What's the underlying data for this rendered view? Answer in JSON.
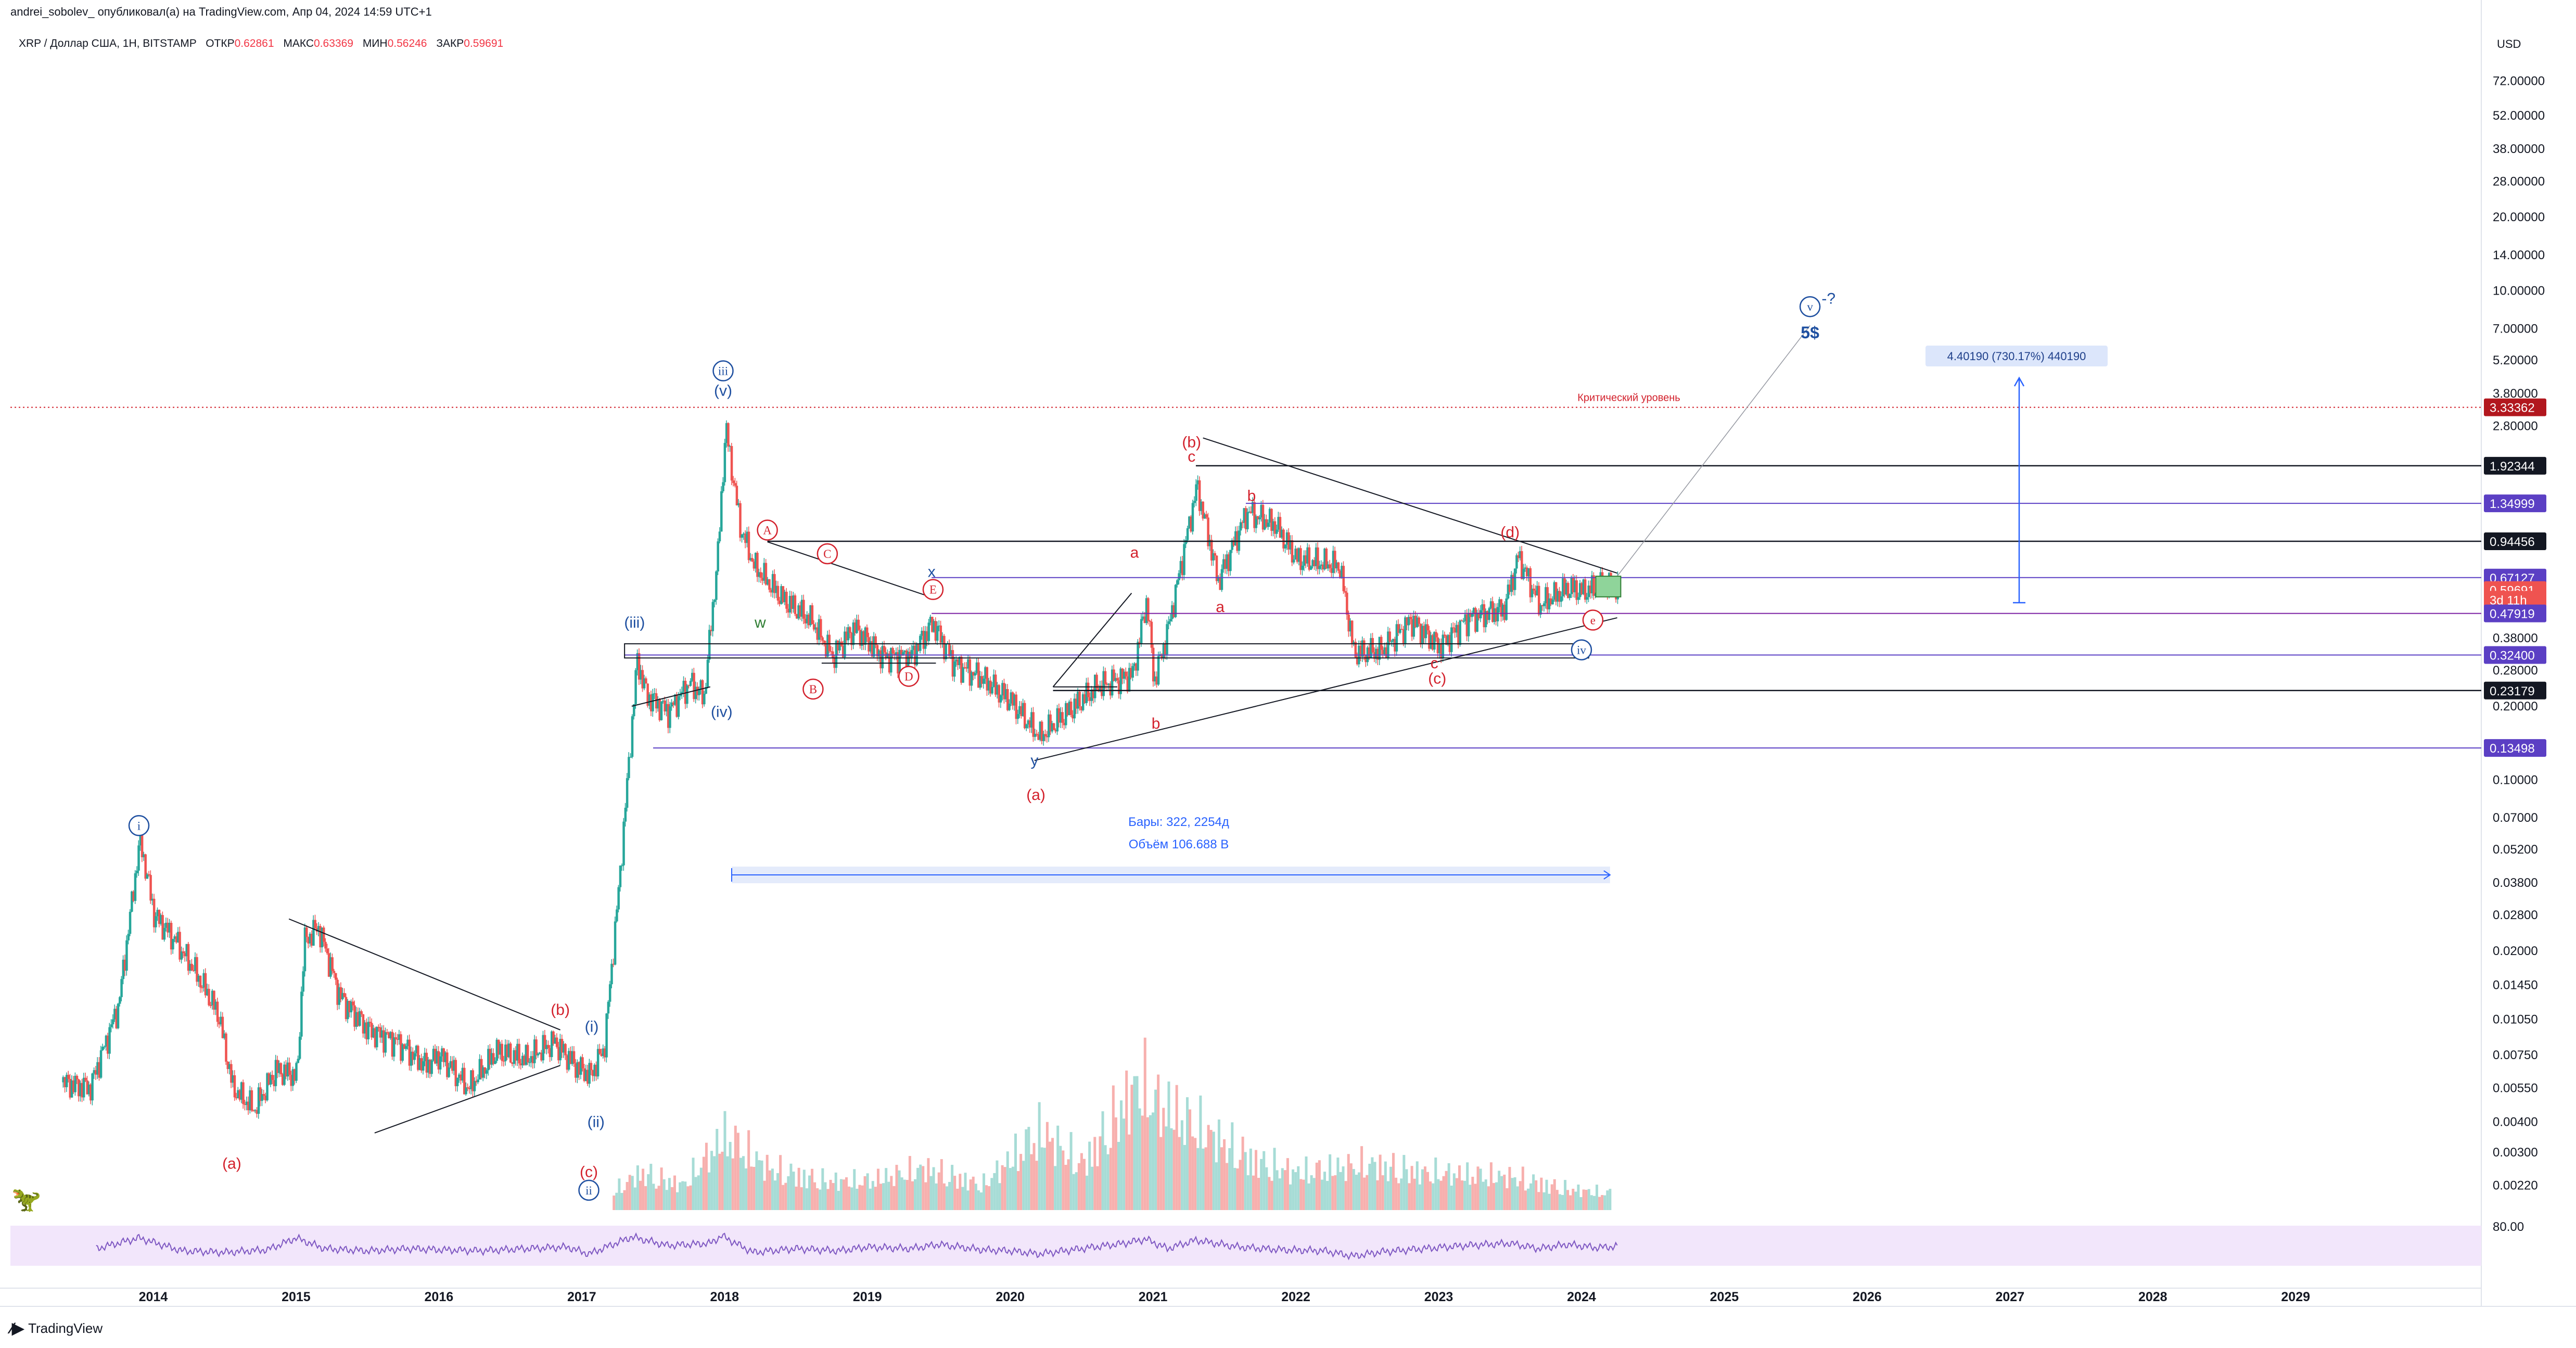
{
  "header": {
    "publisher": "andrei_sobolev_ опубликовал(а) на TradingView.com, Апр 04, 2024 14:59 UTC+1",
    "symbol": "XRP / Доллар США, 1Н, BITSTAMP",
    "open_label": "ОТКР",
    "open": "0.62861",
    "high_label": "МАКС",
    "high": "0.63369",
    "low_label": "МИН",
    "low": "0.56246",
    "close_label": "ЗАКР",
    "close": "0.59691",
    "currency": "USD"
  },
  "footer": {
    "brand": "TradingView"
  },
  "colors": {
    "up": "#26a69a",
    "down": "#ef5350",
    "wave_blue": "#1e4fa0",
    "wave_red": "#d3212c",
    "level_purple": "#5b3fc4",
    "rsi_bg": "#f2e6fb",
    "rsi_line": "#7e57c2"
  },
  "chart_data": {
    "type": "candlestick",
    "yscale": "log",
    "ylim": [
      0.0017,
      90
    ],
    "xlim": [
      2013.0,
      2030.3
    ],
    "price_ticks": [
      "72.00000",
      "52.00000",
      "38.00000",
      "28.00000",
      "20.00000",
      "14.00000",
      "10.00000",
      "7.00000",
      "5.20000",
      "3.80000",
      "2.80000",
      "0.38000",
      "0.28000",
      "0.20000",
      "0.10000",
      "0.07000",
      "0.05200",
      "0.03800",
      "0.02800",
      "0.02000",
      "0.01450",
      "0.01050",
      "0.00750",
      "0.00550",
      "0.00400",
      "0.00300",
      "0.00220"
    ],
    "price_tick_values": [
      72,
      52,
      38,
      28,
      20,
      14,
      10,
      7,
      5.2,
      3.8,
      2.8,
      0.38,
      0.28,
      0.2,
      0.1,
      0.07,
      0.052,
      0.038,
      0.028,
      0.02,
      0.0145,
      0.0105,
      0.0075,
      0.0055,
      0.004,
      0.003,
      0.0022
    ],
    "x_ticks": [
      "2014",
      "2015",
      "2016",
      "2017",
      "2018",
      "2019",
      "2020",
      "2021",
      "2022",
      "2023",
      "2024",
      "2025",
      "2026",
      "2027",
      "2028",
      "2029"
    ],
    "x_tick_values": [
      2014,
      2015,
      2016,
      2017,
      2018,
      2019,
      2020,
      2021,
      2022,
      2023,
      2024,
      2025,
      2026,
      2027,
      2028,
      2029
    ],
    "price_path": [
      [
        2013.35,
        0.0058
      ],
      [
        2013.55,
        0.0055
      ],
      [
        2013.75,
        0.012
      ],
      [
        2013.9,
        0.058
      ],
      [
        2014.0,
        0.028
      ],
      [
        2014.15,
        0.022
      ],
      [
        2014.3,
        0.016
      ],
      [
        2014.45,
        0.011
      ],
      [
        2014.55,
        0.0055
      ],
      [
        2014.7,
        0.0045
      ],
      [
        2014.85,
        0.0065
      ],
      [
        2015.0,
        0.0062
      ],
      [
        2015.05,
        0.022
      ],
      [
        2015.15,
        0.025
      ],
      [
        2015.3,
        0.013
      ],
      [
        2015.5,
        0.0095
      ],
      [
        2015.7,
        0.0085
      ],
      [
        2015.9,
        0.0068
      ],
      [
        2016.0,
        0.0075
      ],
      [
        2016.2,
        0.0055
      ],
      [
        2016.4,
        0.0078
      ],
      [
        2016.6,
        0.0072
      ],
      [
        2016.8,
        0.0085
      ],
      [
        2016.95,
        0.0068
      ],
      [
        2017.05,
        0.0062
      ],
      [
        2017.15,
        0.008
      ],
      [
        2017.25,
        0.035
      ],
      [
        2017.38,
        0.31
      ],
      [
        2017.45,
        0.22
      ],
      [
        2017.6,
        0.19
      ],
      [
        2017.75,
        0.25
      ],
      [
        2017.85,
        0.22
      ],
      [
        2017.95,
        0.9
      ],
      [
        2018.0,
        2.8
      ],
      [
        2018.1,
        1.1
      ],
      [
        2018.2,
        0.75
      ],
      [
        2018.4,
        0.55
      ],
      [
        2018.6,
        0.45
      ],
      [
        2018.75,
        0.32
      ],
      [
        2018.9,
        0.42
      ],
      [
        2019.1,
        0.32
      ],
      [
        2019.3,
        0.32
      ],
      [
        2019.45,
        0.44
      ],
      [
        2019.6,
        0.3
      ],
      [
        2019.8,
        0.26
      ],
      [
        2020.0,
        0.21
      ],
      [
        2020.2,
        0.15
      ],
      [
        2020.35,
        0.18
      ],
      [
        2020.6,
        0.24
      ],
      [
        2020.85,
        0.27
      ],
      [
        2020.95,
        0.55
      ],
      [
        2021.0,
        0.25
      ],
      [
        2021.1,
        0.42
      ],
      [
        2021.3,
        1.6
      ],
      [
        2021.45,
        0.65
      ],
      [
        2021.65,
        1.25
      ],
      [
        2021.85,
        1.1
      ],
      [
        2022.0,
        0.8
      ],
      [
        2022.3,
        0.75
      ],
      [
        2022.4,
        0.33
      ],
      [
        2022.6,
        0.34
      ],
      [
        2022.8,
        0.45
      ],
      [
        2023.0,
        0.35
      ],
      [
        2023.2,
        0.46
      ],
      [
        2023.45,
        0.5
      ],
      [
        2023.55,
        0.82
      ],
      [
        2023.7,
        0.52
      ],
      [
        2023.9,
        0.61
      ],
      [
        2024.0,
        0.59
      ],
      [
        2024.15,
        0.62
      ],
      [
        2024.25,
        0.597
      ]
    ],
    "price_labels": [
      {
        "text": "3.33362",
        "value": 3.33362,
        "bg": "#b2171e"
      },
      {
        "text": "1.92344",
        "value": 1.92344,
        "bg": "#131722"
      },
      {
        "text": "1.34999",
        "value": 1.34999,
        "bg": "#5b3fc4"
      },
      {
        "text": "0.94456",
        "value": 0.94456,
        "bg": "#131722"
      },
      {
        "text": "0.67127",
        "value": 0.67127,
        "bg": "#5b3fc4"
      },
      {
        "text": "0.59691",
        "value": 0.59691,
        "bg": "#ef5350"
      },
      {
        "text": "3d 11h",
        "value": 0.545,
        "bg": "#ef5350"
      },
      {
        "text": "0.47919",
        "value": 0.47919,
        "bg": "#5b3fc4"
      },
      {
        "text": "0.32400",
        "value": 0.324,
        "bg": "#5b3fc4"
      },
      {
        "text": "0.23179",
        "value": 0.23179,
        "bg": "#131722"
      },
      {
        "text": "0.13498",
        "value": 0.13498,
        "bg": "#5b3fc4"
      }
    ],
    "horizontal_levels": [
      {
        "value": 1.92344,
        "x_start": 2021.3,
        "color": "#131722"
      },
      {
        "value": 1.34999,
        "x_start": 2021.65,
        "color": "#5b3fc4"
      },
      {
        "value": 0.94456,
        "x_start": 2018.3,
        "color": "#131722"
      },
      {
        "value": 0.67127,
        "x_start": 2019.45,
        "color": "#5b3fc4"
      },
      {
        "value": 0.47919,
        "x_start": 2019.45,
        "color": "#7b1fa2"
      },
      {
        "value": 0.324,
        "x_start": 2017.3,
        "color": "#5b3fc4"
      },
      {
        "value": 0.23179,
        "x_start": 2020.3,
        "color": "#131722"
      },
      {
        "value": 0.13498,
        "x_start": 2017.5,
        "color": "#5b3fc4"
      }
    ],
    "critical_level": {
      "value": 3.33362,
      "label": "Критический уровень"
    },
    "measure": {
      "text": "4.40190 (730.17%) 440190",
      "from": 0.53,
      "to": 4.4
    },
    "range_info": {
      "bars": "Бары: 322, 2254д",
      "volume": "Объём 106.688 B",
      "x_start": 2018.05,
      "x_end": 2024.2
    },
    "wave_labels": [
      {
        "t": "i",
        "x": 2013.9,
        "y": 0.065,
        "style": "circle_blue"
      },
      {
        "t": "ii",
        "x": 2017.05,
        "y": 0.0021,
        "style": "circle_blue"
      },
      {
        "t": "iii",
        "x": 2017.99,
        "y": 4.7,
        "style": "circle_blue"
      },
      {
        "t": "iv",
        "x": 2024.0,
        "y": 0.34,
        "style": "circle_blue"
      },
      {
        "t": "v",
        "x": 2025.6,
        "y": 8.6,
        "style": "circle_blue"
      },
      {
        "t": "-?",
        "x": 2025.73,
        "y": 9.3,
        "style": "text_blue"
      },
      {
        "t": "5$",
        "x": 2025.6,
        "y": 6.7,
        "style": "bold_blue"
      },
      {
        "t": "(i)",
        "x": 2017.07,
        "y": 0.0098,
        "style": "text_blue"
      },
      {
        "t": "(ii)",
        "x": 2017.1,
        "y": 0.004,
        "style": "text_blue"
      },
      {
        "t": "(iii)",
        "x": 2017.37,
        "y": 0.44,
        "style": "text_blue"
      },
      {
        "t": "(iv)",
        "x": 2017.98,
        "y": 0.19,
        "style": "text_blue"
      },
      {
        "t": "(v)",
        "x": 2017.99,
        "y": 3.9,
        "style": "text_blue"
      },
      {
        "t": "(a)",
        "x": 2014.55,
        "y": 0.0027,
        "style": "text_red"
      },
      {
        "t": "(b)",
        "x": 2016.85,
        "y": 0.0115,
        "style": "text_red"
      },
      {
        "t": "(c)",
        "x": 2017.05,
        "y": 0.0025,
        "style": "text_red"
      },
      {
        "t": "(a)",
        "x": 2020.18,
        "y": 0.087,
        "style": "text_red"
      },
      {
        "t": "(b)",
        "x": 2021.27,
        "y": 2.4,
        "style": "text_red"
      },
      {
        "t": "(c)",
        "x": 2022.99,
        "y": 0.26,
        "style": "text_red"
      },
      {
        "t": "(d)",
        "x": 2023.5,
        "y": 1.03,
        "style": "text_red"
      },
      {
        "t": "e",
        "x": 2024.08,
        "y": 0.45,
        "style": "circle_red"
      },
      {
        "t": "A",
        "x": 2018.3,
        "y": 1.05,
        "style": "circle_red"
      },
      {
        "t": "B",
        "x": 2018.62,
        "y": 0.235,
        "style": "circle_red"
      },
      {
        "t": "C",
        "x": 2018.72,
        "y": 0.84,
        "style": "circle_red"
      },
      {
        "t": "D",
        "x": 2019.29,
        "y": 0.265,
        "style": "circle_red"
      },
      {
        "t": "E",
        "x": 2019.46,
        "y": 0.6,
        "style": "circle_red"
      },
      {
        "t": "w",
        "x": 2018.25,
        "y": 0.44,
        "style": "text_green"
      },
      {
        "t": "x",
        "x": 2019.45,
        "y": 0.71,
        "style": "text_blue"
      },
      {
        "t": "y",
        "x": 2020.17,
        "y": 0.12,
        "style": "text_blue"
      },
      {
        "t": "a",
        "x": 2020.87,
        "y": 0.85,
        "style": "text_red"
      },
      {
        "t": "b",
        "x": 2021.02,
        "y": 0.17,
        "style": "text_red"
      },
      {
        "t": "c",
        "x": 2021.27,
        "y": 2.1,
        "style": "text_red"
      },
      {
        "t": "a",
        "x": 2021.47,
        "y": 0.51,
        "style": "text_red"
      },
      {
        "t": "b",
        "x": 2021.69,
        "y": 1.45,
        "style": "text_red"
      },
      {
        "t": "c",
        "x": 2022.97,
        "y": 0.3,
        "style": "text_red"
      }
    ],
    "trend_lines": [
      [
        [
          2014.95,
          0.027
        ],
        [
          2016.85,
          0.0095
        ]
      ],
      [
        [
          2015.55,
          0.0036
        ],
        [
          2016.85,
          0.0068
        ]
      ],
      [
        [
          2018.3,
          0.94
        ],
        [
          2019.48,
          0.55
        ]
      ],
      [
        [
          2018.68,
          0.3
        ],
        [
          2019.48,
          0.3
        ]
      ],
      [
        [
          2021.35,
          2.5
        ],
        [
          2024.25,
          0.7
        ]
      ],
      [
        [
          2020.17,
          0.12
        ],
        [
          2024.25,
          0.46
        ]
      ],
      [
        [
          2020.3,
          0.24
        ],
        [
          2020.85,
          0.58
        ]
      ],
      [
        [
          2020.3,
          0.24
        ],
        [
          2020.75,
          0.24
        ]
      ],
      [
        [
          2017.35,
          0.2
        ],
        [
          2017.9,
          0.24
        ]
      ]
    ],
    "projection_line": [
      [
        2024.25,
        0.68
      ],
      [
        2025.6,
        7.2
      ]
    ],
    "rsi": {
      "label": "80.00",
      "ylim": [
        20,
        95
      ],
      "values": [
        [
          2013.6,
          52
        ],
        [
          2013.9,
          72
        ],
        [
          2014.2,
          48
        ],
        [
          2014.5,
          45
        ],
        [
          2014.8,
          50
        ],
        [
          2015.0,
          72
        ],
        [
          2015.2,
          52
        ],
        [
          2015.5,
          48
        ],
        [
          2015.8,
          52
        ],
        [
          2016.0,
          50
        ],
        [
          2016.3,
          48
        ],
        [
          2016.6,
          52
        ],
        [
          2016.9,
          55
        ],
        [
          2017.05,
          42
        ],
        [
          2017.2,
          58
        ],
        [
          2017.35,
          74
        ],
        [
          2017.6,
          58
        ],
        [
          2017.9,
          62
        ],
        [
          2017.98,
          76
        ],
        [
          2018.2,
          45
        ],
        [
          2018.5,
          52
        ],
        [
          2018.8,
          48
        ],
        [
          2019.0,
          55
        ],
        [
          2019.3,
          52
        ],
        [
          2019.5,
          60
        ],
        [
          2019.8,
          50
        ],
        [
          2020.0,
          48
        ],
        [
          2020.2,
          42
        ],
        [
          2020.5,
          52
        ],
        [
          2020.8,
          62
        ],
        [
          2020.95,
          70
        ],
        [
          2021.1,
          52
        ],
        [
          2021.3,
          68
        ],
        [
          2021.6,
          55
        ],
        [
          2021.9,
          50
        ],
        [
          2022.2,
          48
        ],
        [
          2022.4,
          38
        ],
        [
          2022.6,
          46
        ],
        [
          2022.9,
          52
        ],
        [
          2023.2,
          58
        ],
        [
          2023.5,
          62
        ],
        [
          2023.7,
          52
        ],
        [
          2023.9,
          60
        ],
        [
          2024.1,
          54
        ],
        [
          2024.25,
          56
        ]
      ]
    },
    "volume": [
      [
        2017.2,
        0.2
      ],
      [
        2017.4,
        0.45
      ],
      [
        2017.7,
        0.3
      ],
      [
        2018.0,
        0.9
      ],
      [
        2018.3,
        0.5
      ],
      [
        2018.7,
        0.35
      ],
      [
        2019.0,
        0.35
      ],
      [
        2019.4,
        0.5
      ],
      [
        2019.8,
        0.3
      ],
      [
        2020.2,
        0.95
      ],
      [
        2020.5,
        0.55
      ],
      [
        2020.9,
        1.55
      ],
      [
        2021.0,
        1.3
      ],
      [
        2021.3,
        1.0
      ],
      [
        2021.7,
        0.6
      ],
      [
        2022.0,
        0.45
      ],
      [
        2022.5,
        0.55
      ],
      [
        2022.9,
        0.45
      ],
      [
        2023.5,
        0.4
      ],
      [
        2023.9,
        0.25
      ],
      [
        2024.2,
        0.2
      ]
    ]
  }
}
